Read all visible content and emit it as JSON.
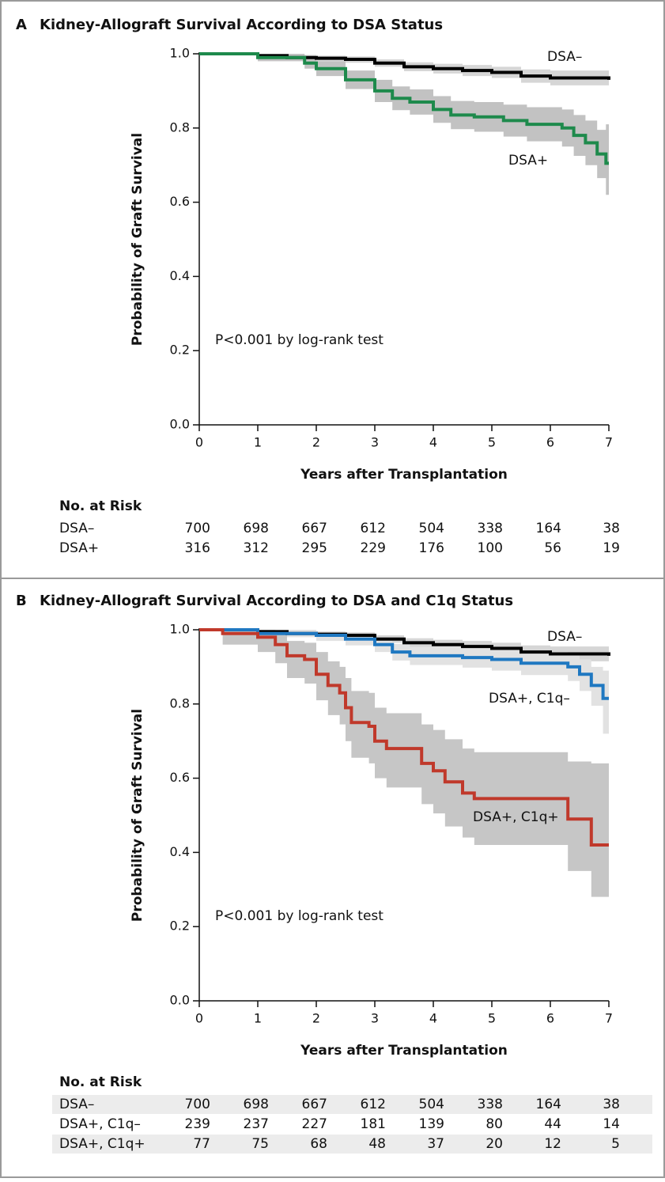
{
  "chart_data": [
    {
      "type": "line",
      "step": true,
      "panel": "A",
      "title": "Kidney-Allograft Survival According to DSA Status",
      "xlabel": "Years after Transplantation",
      "ylabel": "Probability of Graft Survival",
      "annotation": "P<0.001 by log-rank test",
      "xlim": [
        0,
        7
      ],
      "xticks": [
        0,
        1,
        2,
        3,
        4,
        5,
        6,
        7
      ],
      "ylim": [
        0,
        1
      ],
      "yticks": [
        {
          "value": 0,
          "label": "0.0"
        },
        {
          "value": 0.2,
          "label": "0.2"
        },
        {
          "value": 0.4,
          "label": "0.4"
        },
        {
          "value": 0.6,
          "label": "0.6"
        },
        {
          "value": 0.8,
          "label": "0.8"
        },
        {
          "value": 1,
          "label": "1.0"
        }
      ],
      "series": [
        {
          "name": "DSA–",
          "color": "#000000",
          "band_color": "#d6d6d6",
          "x": [
            0,
            1,
            1.5,
            2,
            2.5,
            3,
            3.5,
            4,
            4.5,
            5,
            5.5,
            6,
            7
          ],
          "values": [
            1,
            0.995,
            0.99,
            0.988,
            0.985,
            0.975,
            0.965,
            0.96,
            0.955,
            0.95,
            0.94,
            0.935,
            0.93
          ],
          "lower": [
            1,
            0.99,
            0.983,
            0.98,
            0.976,
            0.965,
            0.953,
            0.947,
            0.94,
            0.935,
            0.922,
            0.915,
            0.905
          ],
          "upper": [
            1,
            1,
            0.997,
            0.995,
            0.993,
            0.985,
            0.977,
            0.973,
            0.97,
            0.965,
            0.958,
            0.955,
            0.953
          ]
        },
        {
          "name": "DSA+",
          "color": "#1e8a4c",
          "band_color": "#c2c2c2",
          "x": [
            0,
            1,
            1.8,
            2,
            2.5,
            3,
            3.3,
            3.6,
            4,
            4.3,
            4.7,
            5.2,
            5.6,
            6.2,
            6.4,
            6.6,
            6.8,
            6.95,
            7
          ],
          "values": [
            1,
            0.99,
            0.975,
            0.96,
            0.93,
            0.9,
            0.88,
            0.87,
            0.85,
            0.835,
            0.83,
            0.82,
            0.81,
            0.8,
            0.78,
            0.76,
            0.73,
            0.705,
            0.705
          ],
          "lower": [
            1,
            0.98,
            0.96,
            0.94,
            0.905,
            0.87,
            0.848,
            0.836,
            0.814,
            0.797,
            0.79,
            0.777,
            0.764,
            0.75,
            0.725,
            0.7,
            0.665,
            0.62,
            0.615
          ],
          "upper": [
            1,
            1,
            0.99,
            0.98,
            0.955,
            0.93,
            0.912,
            0.904,
            0.886,
            0.873,
            0.87,
            0.863,
            0.856,
            0.85,
            0.835,
            0.82,
            0.795,
            0.81,
            0.81
          ]
        }
      ],
      "risk_table": {
        "title": "No. at Risk",
        "rows": [
          {
            "name": "DSA–",
            "values": [
              700,
              698,
              667,
              612,
              504,
              338,
              164,
              38
            ]
          },
          {
            "name": "DSA+",
            "values": [
              316,
              312,
              295,
              229,
              176,
              100,
              56,
              19
            ]
          }
        ]
      }
    },
    {
      "type": "line",
      "step": true,
      "panel": "B",
      "title": "Kidney-Allograft Survival According to DSA and C1q Status",
      "xlabel": "Years after Transplantation",
      "ylabel": "Probability of Graft Survival",
      "annotation": "P<0.001 by log-rank test",
      "xlim": [
        0,
        7
      ],
      "xticks": [
        0,
        1,
        2,
        3,
        4,
        5,
        6,
        7
      ],
      "ylim": [
        0,
        1
      ],
      "yticks": [
        {
          "value": 0,
          "label": "0.0"
        },
        {
          "value": 0.2,
          "label": "0.2"
        },
        {
          "value": 0.4,
          "label": "0.4"
        },
        {
          "value": 0.6,
          "label": "0.6"
        },
        {
          "value": 0.8,
          "label": "0.8"
        },
        {
          "value": 1,
          "label": "1.0"
        }
      ],
      "series": [
        {
          "name": "DSA–",
          "color": "#000000",
          "band_color": "#d6d6d6",
          "x": [
            0,
            1,
            1.5,
            2,
            2.5,
            3,
            3.5,
            4,
            4.5,
            5,
            5.5,
            6,
            7
          ],
          "values": [
            1,
            0.995,
            0.99,
            0.988,
            0.985,
            0.975,
            0.965,
            0.96,
            0.955,
            0.95,
            0.94,
            0.935,
            0.93
          ],
          "lower": [
            1,
            0.99,
            0.983,
            0.98,
            0.976,
            0.965,
            0.953,
            0.947,
            0.94,
            0.935,
            0.922,
            0.915,
            0.905
          ],
          "upper": [
            1,
            1,
            0.997,
            0.995,
            0.993,
            0.985,
            0.977,
            0.973,
            0.97,
            0.965,
            0.958,
            0.955,
            0.953
          ]
        },
        {
          "name": "DSA+, C1q–",
          "color": "#1f78c1",
          "band_color": "#e2e2e2",
          "x": [
            0,
            1,
            2,
            2.5,
            3,
            3.3,
            3.6,
            4.5,
            5,
            5.5,
            6.3,
            6.5,
            6.7,
            6.9,
            7
          ],
          "values": [
            1,
            0.99,
            0.985,
            0.975,
            0.96,
            0.94,
            0.93,
            0.925,
            0.92,
            0.91,
            0.9,
            0.88,
            0.85,
            0.815,
            0.815
          ],
          "lower": [
            1,
            0.98,
            0.97,
            0.958,
            0.94,
            0.917,
            0.905,
            0.898,
            0.89,
            0.878,
            0.862,
            0.835,
            0.795,
            0.72,
            0.715
          ],
          "upper": [
            1,
            1,
            0.996,
            0.99,
            0.978,
            0.962,
            0.954,
            0.951,
            0.948,
            0.94,
            0.935,
            0.92,
            0.9,
            0.89,
            0.885
          ]
        },
        {
          "name": "DSA+, C1q+",
          "color": "#c0392b",
          "band_color": "#c6c6c6",
          "x": [
            0,
            0.4,
            1,
            1.3,
            1.5,
            1.8,
            2,
            2.2,
            2.4,
            2.5,
            2.6,
            2.9,
            3,
            3.2,
            3.8,
            4,
            4.2,
            4.5,
            4.7,
            6.3,
            6.7,
            7
          ],
          "values": [
            1,
            0.99,
            0.98,
            0.96,
            0.93,
            0.92,
            0.88,
            0.85,
            0.83,
            0.79,
            0.75,
            0.74,
            0.7,
            0.68,
            0.64,
            0.62,
            0.59,
            0.56,
            0.545,
            0.49,
            0.42,
            0.42
          ],
          "lower": [
            1,
            0.96,
            0.94,
            0.91,
            0.87,
            0.855,
            0.81,
            0.77,
            0.745,
            0.7,
            0.655,
            0.64,
            0.6,
            0.575,
            0.53,
            0.505,
            0.47,
            0.44,
            0.42,
            0.35,
            0.28,
            0.28
          ],
          "upper": [
            1,
            1,
            1,
            0.99,
            0.97,
            0.965,
            0.94,
            0.915,
            0.9,
            0.87,
            0.835,
            0.83,
            0.79,
            0.775,
            0.745,
            0.73,
            0.705,
            0.68,
            0.67,
            0.645,
            0.64,
            0.64
          ]
        }
      ],
      "risk_table": {
        "title": "No. at Risk",
        "rows": [
          {
            "name": "DSA–",
            "values": [
              700,
              698,
              667,
              612,
              504,
              338,
              164,
              38
            ]
          },
          {
            "name": "DSA+, C1q–",
            "values": [
              239,
              237,
              227,
              181,
              139,
              80,
              44,
              14
            ]
          },
          {
            "name": "DSA+, C1q+",
            "values": [
              77,
              75,
              68,
              48,
              37,
              20,
              12,
              5
            ]
          }
        ]
      }
    }
  ]
}
